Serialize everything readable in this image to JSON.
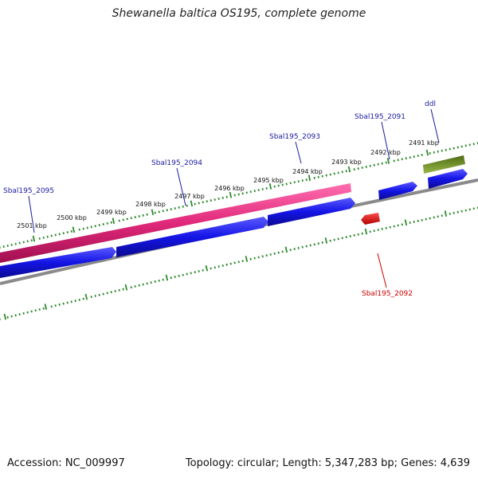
{
  "title": "Shewanella baltica OS195, complete genome",
  "footer": {
    "accession": "Accession: NC_009997",
    "summary": "Topology: circular; Length: 5,347,283 bp; Genes: 4,639"
  },
  "colors": {
    "ruler": "#2d8a2d",
    "backbone": "#8a8a8a",
    "cds_blue": "#1414e6",
    "rna_pink": "#e0287a",
    "red_feature": "#e60000",
    "olive_feature": "#6b8e23",
    "label_blue": "#1a1aa0",
    "label_red": "#cc0000"
  },
  "kbp_ticks": [
    {
      "label": "2501 kbp"
    },
    {
      "label": "2500 kbp"
    },
    {
      "label": "2499 kbp"
    },
    {
      "label": "2498 kbp"
    },
    {
      "label": "2497 kbp"
    },
    {
      "label": "2496 kbp"
    },
    {
      "label": "2495 kbp"
    },
    {
      "label": "2494 kbp"
    },
    {
      "label": "2493 kbp"
    },
    {
      "label": "2492 kbp"
    },
    {
      "label": "2491 kbp"
    }
  ],
  "gene_labels": [
    {
      "name": "Sbal195_2095"
    },
    {
      "name": "Sbal195_2094"
    },
    {
      "name": "Sbal195_2093"
    },
    {
      "name": "Sbal195_2091"
    },
    {
      "name": "ddl"
    },
    {
      "name": "Sbal195_2092"
    }
  ]
}
